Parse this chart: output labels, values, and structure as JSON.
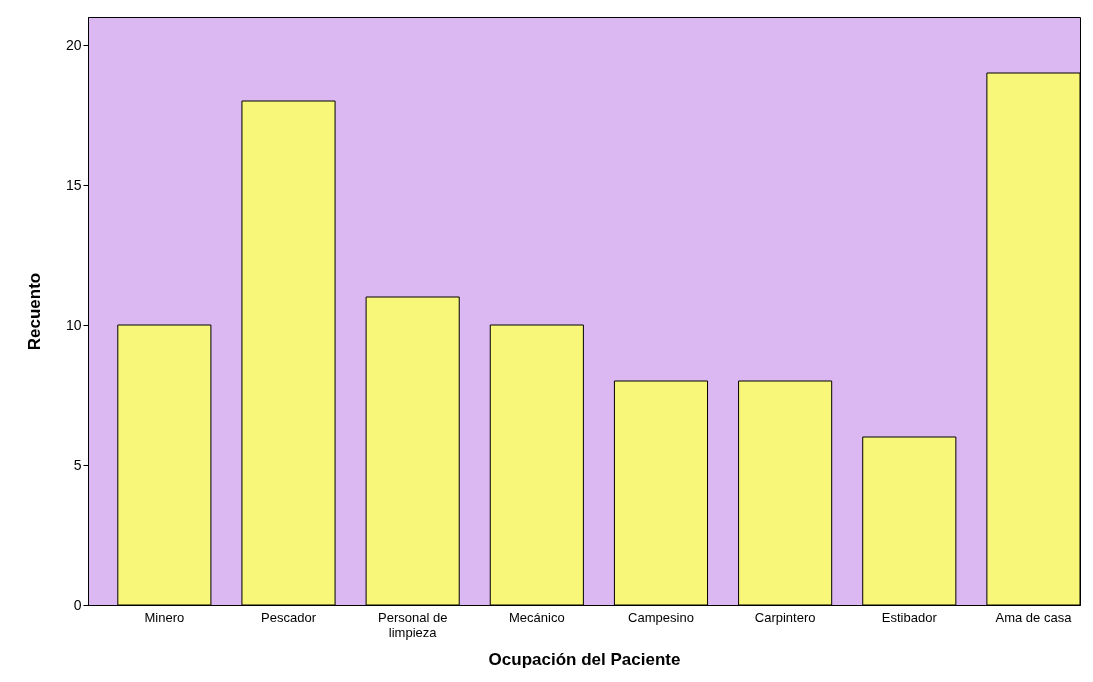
{
  "chart_data": {
    "type": "bar",
    "xlabel": "Ocupación del Paciente",
    "ylabel": "Recuento",
    "categories": [
      "Minero",
      "Pescador",
      "Personal de limpieza",
      "Mecánico",
      "Campesino",
      "Carpintero",
      "Estibador",
      "Ama de casa"
    ],
    "values": [
      10,
      18,
      11,
      10,
      8,
      8,
      6,
      19
    ],
    "color": "#f8f77a",
    "ylim": [
      0,
      21
    ],
    "yticks": [
      0,
      5,
      10,
      15,
      20
    ],
    "grid": false
  }
}
